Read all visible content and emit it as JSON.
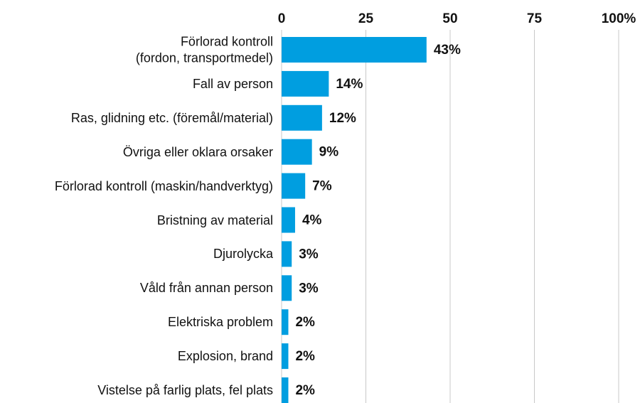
{
  "chart_data": {
    "type": "bar",
    "orientation": "horizontal",
    "categories": [
      "Förlorad kontroll \n(fordon, transportmedel)",
      "Fall av person",
      "Ras, glidning etc. (föremål/material)",
      "Övriga eller oklara orsaker",
      "Förlorad kontroll (maskin/handverktyg)",
      "Bristning av material",
      "Djurolycka",
      "Våld från annan person",
      "Elektriska problem",
      "Explosion, brand",
      "Vistelse på farlig plats, fel plats"
    ],
    "values": [
      43,
      14,
      12,
      9,
      7,
      4,
      3,
      3,
      2,
      2,
      2
    ],
    "value_labels": [
      "43%",
      "14%",
      "12%",
      "9%",
      "7%",
      "4%",
      "3%",
      "3%",
      "2%",
      "2%",
      "2%"
    ],
    "color": "#009ee0",
    "xlim": [
      0,
      100
    ],
    "xticks": [
      0,
      25,
      50,
      75,
      {
        "value": 100,
        "label": "100%"
      }
    ],
    "grid": true
  }
}
